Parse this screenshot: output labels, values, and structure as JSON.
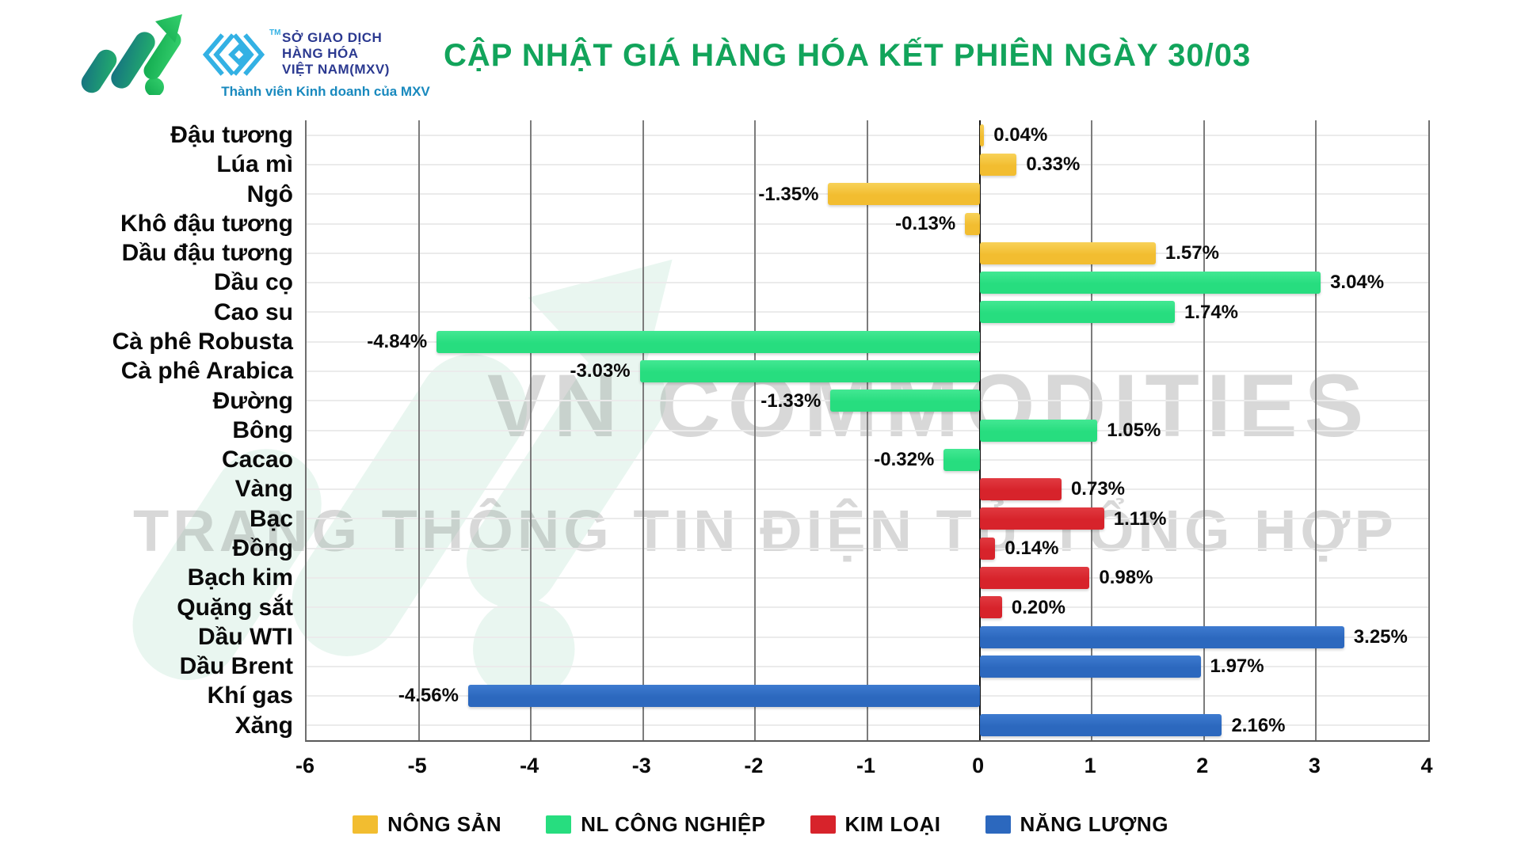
{
  "header": {
    "mxv": {
      "name": "SỞ GIAO DỊCH\nHÀNG HÓA\nVIỆT NAM(MXV)",
      "trademark": "TM",
      "tagline": "Thành viên Kinh doanh của MXV"
    },
    "title": "CẬP NHẬT GIÁ HÀNG HÓA KẾT PHIÊN NGÀY 30/03"
  },
  "watermarks": {
    "line1": "VN COMMODITIES",
    "line2": "TRANG THÔNG TIN ĐIỆN TỬ TỔNG HỢP"
  },
  "chart_data": {
    "type": "bar",
    "orientation": "horizontal",
    "title": "CẬP NHẬT GIÁ HÀNG HÓA KẾT PHIÊN NGÀY 30/03",
    "categories": [
      "Đậu tương",
      "Lúa mì",
      "Ngô",
      "Khô đậu tương",
      "Dầu đậu tương",
      "Dầu cọ",
      "Cao su",
      "Cà phê Robusta",
      "Cà phê Arabica",
      "Đường",
      "Bông",
      "Cacao",
      "Vàng",
      "Bạc",
      "Đồng",
      "Bạch kim",
      "Quặng sắt",
      "Dầu WTI",
      "Dầu Brent",
      "Khí gas",
      "Xăng"
    ],
    "values": [
      0.04,
      0.33,
      -1.35,
      -0.13,
      1.57,
      3.04,
      1.74,
      -4.84,
      -3.03,
      -1.33,
      1.05,
      -0.32,
      0.73,
      1.11,
      0.14,
      0.98,
      0.2,
      3.25,
      1.97,
      -4.56,
      2.16
    ],
    "value_labels": [
      "0.04%",
      "0.33%",
      "-1.35%",
      "-0.13%",
      "1.57%",
      "3.04%",
      "1.74%",
      "-4.84%",
      "-3.03%",
      "-1.33%",
      "1.05%",
      "-0.32%",
      "0.73%",
      "1.11%",
      "0.14%",
      "0.98%",
      "0.20%",
      "3.25%",
      "1.97%",
      "-4.56%",
      "2.16%"
    ],
    "groups": [
      "nong_san",
      "nong_san",
      "nong_san",
      "nong_san",
      "nong_san",
      "nl_cong_nghiep",
      "nl_cong_nghiep",
      "nl_cong_nghiep",
      "nl_cong_nghiep",
      "nl_cong_nghiep",
      "nl_cong_nghiep",
      "nl_cong_nghiep",
      "kim_loai",
      "kim_loai",
      "kim_loai",
      "kim_loai",
      "kim_loai",
      "nang_luong",
      "nang_luong",
      "nang_luong",
      "nang_luong"
    ],
    "group_colors": {
      "nong_san": {
        "base": "#F2BD30",
        "light": "#F8D258"
      },
      "nl_cong_nghiep": {
        "base": "#27DD7F",
        "light": "#43E893"
      },
      "kim_loai": {
        "base": "#D7232B",
        "light": "#E13A41"
      },
      "nang_luong": {
        "base": "#2C68BE",
        "light": "#3E7BD0"
      }
    },
    "xlim": [
      -6,
      4
    ],
    "x_ticks": [
      -6,
      -5,
      -4,
      -3,
      -2,
      -1,
      0,
      1,
      2,
      3,
      4
    ],
    "grid": true,
    "legend_position": "bottom",
    "unit": "%"
  },
  "legend": [
    {
      "label": "NÔNG SẢN",
      "color": "#F2BD30"
    },
    {
      "label": "NL CÔNG NGHIỆP",
      "color": "#27DD7F"
    },
    {
      "label": "KIM LOẠI",
      "color": "#D7232B"
    },
    {
      "label": "NĂNG LƯỢNG",
      "color": "#2C68BE"
    }
  ],
  "colors": {
    "title_green": "#12A45B",
    "mxv_navy": "#2B3990",
    "mxv_blue": "#33B1E4",
    "tagline_blue": "#1889BE",
    "grid_gray": "#7C7C7C",
    "row_line_gray": "#EBEBEB"
  }
}
